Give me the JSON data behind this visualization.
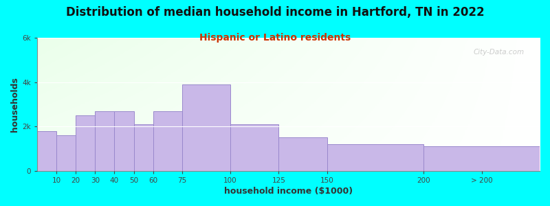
{
  "title": "Distribution of median household income in Hartford, TN in 2022",
  "subtitle": "Hispanic or Latino residents",
  "xlabel": "household income ($1000)",
  "ylabel": "households",
  "background_color": "#00FFFF",
  "bar_color": "#C9B8E8",
  "bar_edge_color": "#9988CC",
  "title_fontsize": 12,
  "subtitle_fontsize": 10,
  "axis_label_fontsize": 9,
  "watermark": "City-Data.com",
  "bin_edges": [
    0,
    10,
    20,
    30,
    40,
    50,
    60,
    75,
    100,
    125,
    150,
    200,
    260
  ],
  "values": [
    1800,
    1600,
    2500,
    2700,
    2700,
    2100,
    2700,
    3900,
    2100,
    1500,
    1200,
    1100
  ],
  "xtick_positions": [
    10,
    20,
    30,
    40,
    50,
    60,
    75,
    100,
    125,
    150,
    200,
    230
  ],
  "xtick_labels": [
    "10",
    "20",
    "30",
    "40",
    "50",
    "60",
    "75",
    "100",
    "125",
    "150",
    "200",
    "> 200"
  ],
  "ylim": [
    0,
    6000
  ],
  "xlim": [
    0,
    260
  ],
  "ytick_vals": [
    0,
    2000,
    4000,
    6000
  ],
  "ytick_labels": [
    "0",
    "2k",
    "4k",
    "6k"
  ],
  "subtitle_color": "#CC3300"
}
